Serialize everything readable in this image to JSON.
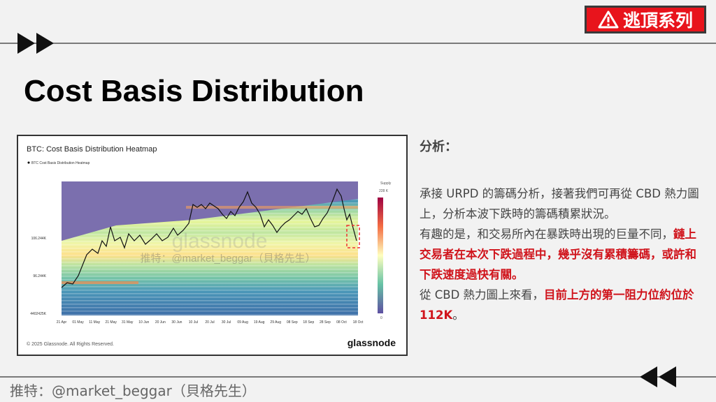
{
  "badge": "逃頂系列",
  "title": "Cost Basis Distribution",
  "figure": {
    "title": "BTC: Cost Basis Distribution Heatmap",
    "legend": "BTC Cost Basis Distribution Heatmap",
    "y_labels": [
      "106.244K",
      "96.244K",
      "4402425K"
    ],
    "x_labels": [
      "21 Apr",
      "01 May",
      "11 May",
      "21 May",
      "31 May",
      "10 Jun",
      "20 Jun",
      "30 Jun",
      "10 Jul",
      "20 Jul",
      "30 Jul",
      "09 Aug",
      "19 Aug",
      "29 Aug",
      "08 Sep",
      "18 Sep",
      "28 Sep",
      "08 Oct",
      "18 Oct"
    ],
    "colorbar_title": "Supply",
    "colorbar_max": "228 K",
    "colorbar_min": "0",
    "watermark": "glassnode",
    "watermark_handle": "推特：@market_beggar（貝格先生）",
    "copyright": "© 2025 Glassnode. All Rights Reserved.",
    "brand": "glassnode"
  },
  "analysis": {
    "heading": "分析：",
    "paragraphs": [
      [
        {
          "text": "承接 URPD 的籌碼分析，接著我們可再從 CBD 熱力圖上，分析本波下跌時的籌碼積累狀況。"
        }
      ],
      [
        {
          "text": "有趣的是，和交易所內在暴跌時出現的巨量不同，"
        },
        {
          "text": "鏈上交易者在本次下跌過程中，幾乎沒有累積籌碼，或許和下跌速度過快有關。",
          "highlight": true
        }
      ],
      [
        {
          "text": "從 CBD 熱力圖上來看，"
        },
        {
          "text": "目前上方的第一阻力位約位於 112K",
          "highlight": true
        },
        {
          "text": "。"
        }
      ]
    ]
  },
  "footer": "推特：@market_beggar（貝格先生）"
}
